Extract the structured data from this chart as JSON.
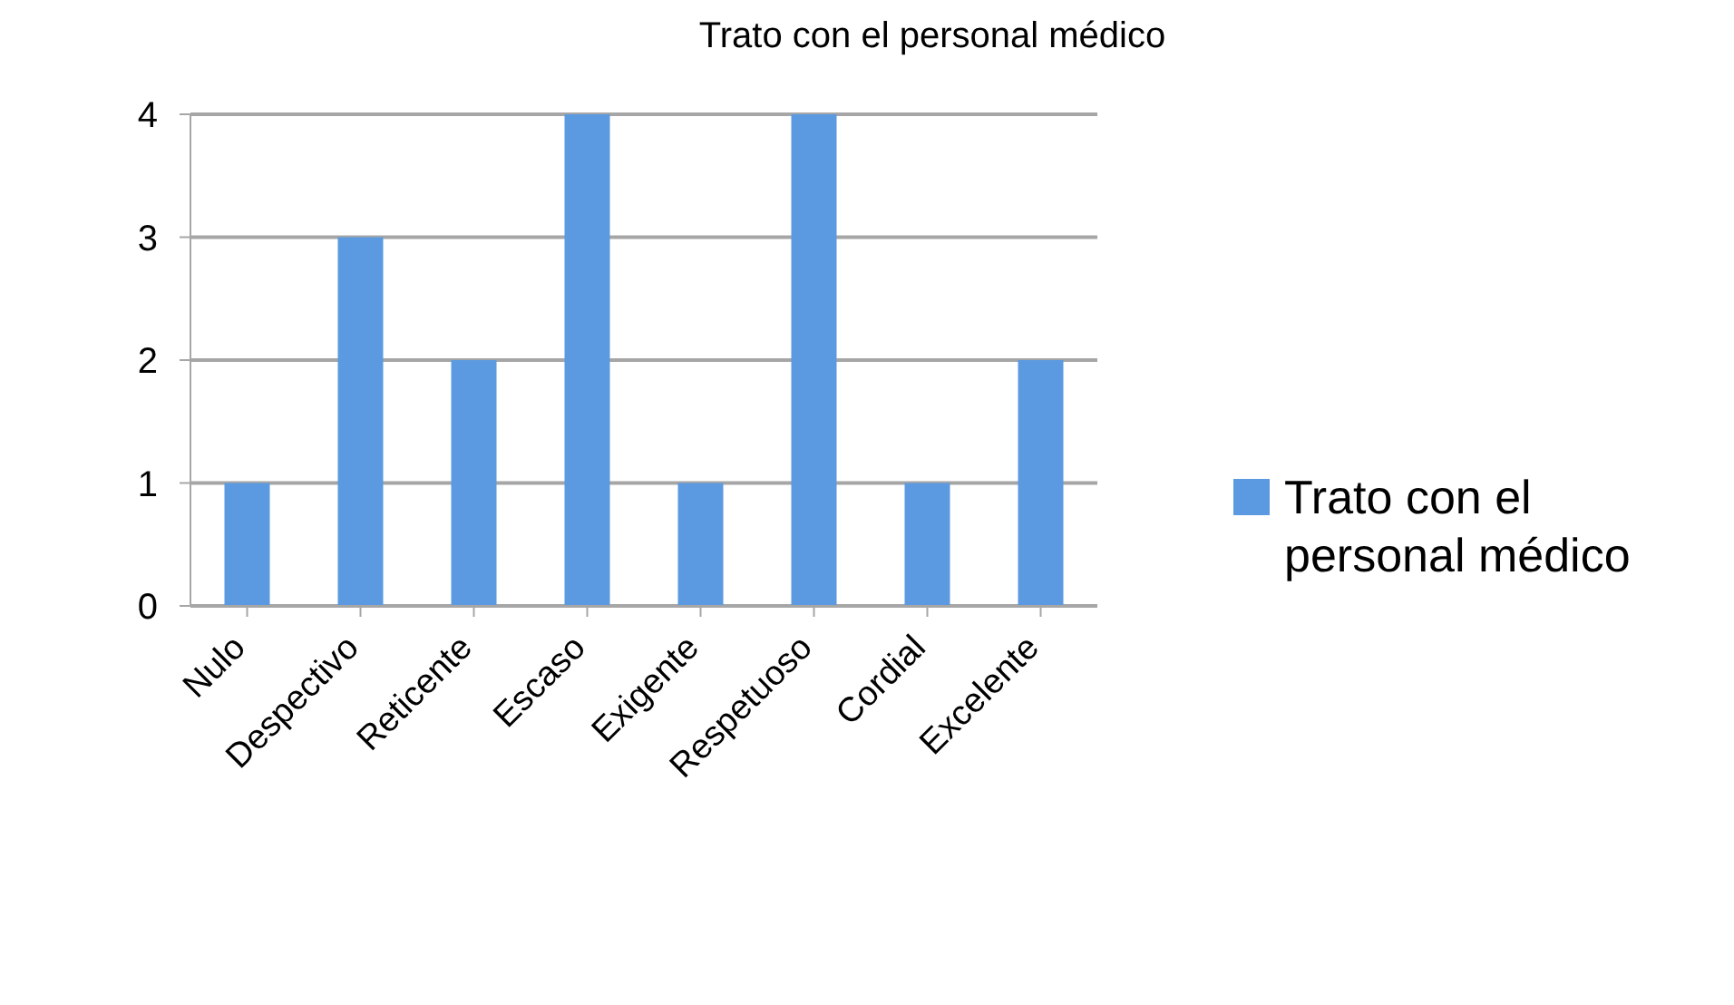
{
  "chart_data": {
    "type": "bar",
    "title": "Trato con el personal médico",
    "categories": [
      "Nulo",
      "Despectivo",
      "Reticente",
      "Escaso",
      "Exigente",
      "Respetuoso",
      "Cordial",
      "Excelente"
    ],
    "series": [
      {
        "name": "Trato con el personal médico",
        "color": "#5b9ae0",
        "values": [
          1,
          3,
          2,
          4,
          1,
          4,
          1,
          2
        ]
      }
    ],
    "ylim": [
      0,
      4
    ],
    "yticks": [
      0,
      1,
      2,
      3,
      4
    ],
    "grid": "y",
    "legend": "right"
  }
}
